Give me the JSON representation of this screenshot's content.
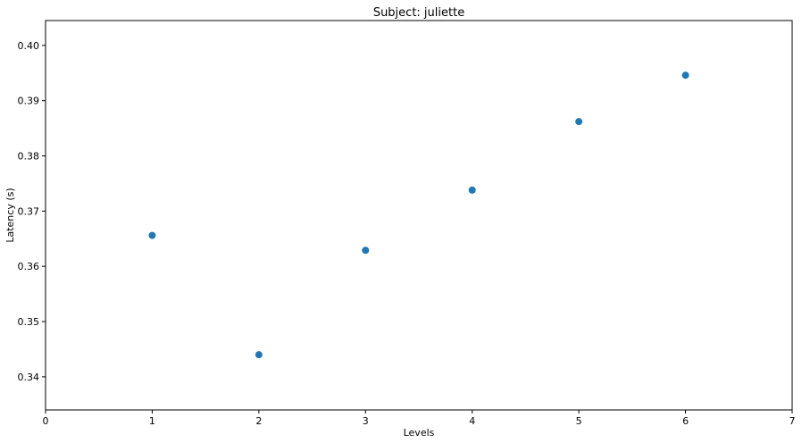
{
  "chart_data": {
    "type": "scatter",
    "title": "Subject: juliette",
    "xlabel": "Levels",
    "ylabel": "Latency (s)",
    "xlim": [
      0,
      7
    ],
    "ylim": [
      0.334,
      0.4045
    ],
    "xticks": [
      0,
      1,
      2,
      3,
      4,
      5,
      6,
      7
    ],
    "yticks": [
      0.34,
      0.35,
      0.36,
      0.37,
      0.38,
      0.39,
      0.4
    ],
    "ytick_labels": [
      "0.34",
      "0.35",
      "0.36",
      "0.37",
      "0.38",
      "0.39",
      "0.40"
    ],
    "grid": false,
    "legend": "none",
    "series": [
      {
        "color": "#1f77b4",
        "x": [
          1,
          2,
          3,
          4,
          5,
          6
        ],
        "y": [
          0.3656,
          0.344,
          0.3629,
          0.3738,
          0.3862,
          0.3946
        ]
      }
    ]
  }
}
